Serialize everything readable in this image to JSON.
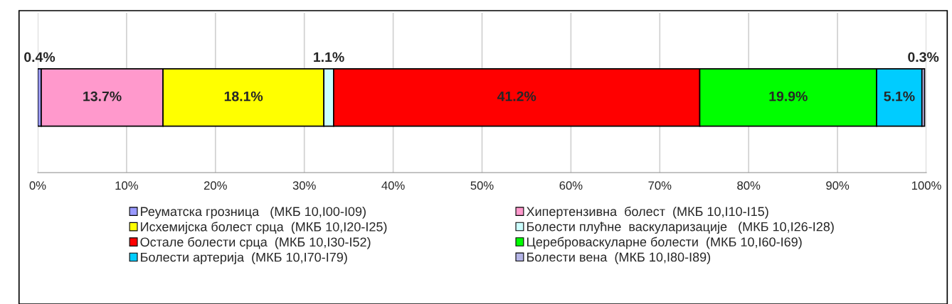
{
  "chart_data": {
    "type": "bar",
    "orientation": "horizontal",
    "stacked": true,
    "categories": [
      null
    ],
    "series": [
      {
        "name": "Реуматска грозница   (МКБ 10,I00-I09)",
        "color": "#9999ff",
        "values": [
          0.4
        ],
        "value_labels": [
          "0.4%"
        ]
      },
      {
        "name": "Хипертензивна  болест  (МКБ 10,I10-I15)",
        "color": "#ff99cc",
        "values": [
          13.7
        ],
        "value_labels": [
          "13.7%"
        ]
      },
      {
        "name": "Исхемијска болест срца  (МКБ 10,I20-I25)",
        "color": "#ffff00",
        "values": [
          18.1
        ],
        "value_labels": [
          "18.1%"
        ]
      },
      {
        "name": "Болести плућне  васкуларизације   (МКБ 10,I26-I28)",
        "color": "#ccffff",
        "values": [
          1.1
        ],
        "value_labels": [
          "1.1%"
        ]
      },
      {
        "name": "Остале болести срца  (МКБ 10,I30-I52)",
        "color": "#ff0000",
        "values": [
          41.2
        ],
        "value_labels": [
          "41.2%"
        ]
      },
      {
        "name": "Цереброваскуларне болести  (МКБ 10,I60-I69)",
        "color": "#00ff00",
        "values": [
          19.9
        ],
        "value_labels": [
          "19.9%"
        ]
      },
      {
        "name": "Болести артерија  (МКБ 10,I70-I79)",
        "color": "#00ccff",
        "values": [
          5.1
        ],
        "value_labels": [
          "5.1%"
        ]
      },
      {
        "name": "Болести вена  (МКБ 10,I80-I89)",
        "color": "#b4b4e6",
        "values": [
          0.3
        ],
        "value_labels": [
          "0.3%"
        ]
      }
    ],
    "xlim": [
      0,
      100
    ],
    "xticks": [
      {
        "value": 0,
        "label": "0%"
      },
      {
        "value": 10,
        "label": "10%"
      },
      {
        "value": 20,
        "label": "20%"
      },
      {
        "value": 30,
        "label": "30%"
      },
      {
        "value": 40,
        "label": "40%"
      },
      {
        "value": 50,
        "label": "50%"
      },
      {
        "value": 60,
        "label": "60%"
      },
      {
        "value": 70,
        "label": "70%"
      },
      {
        "value": 80,
        "label": "80%"
      },
      {
        "value": 90,
        "label": "90%"
      },
      {
        "value": 100,
        "label": "100%"
      }
    ],
    "grid": "x",
    "legend": "bottom",
    "tick_labels": "x"
  }
}
